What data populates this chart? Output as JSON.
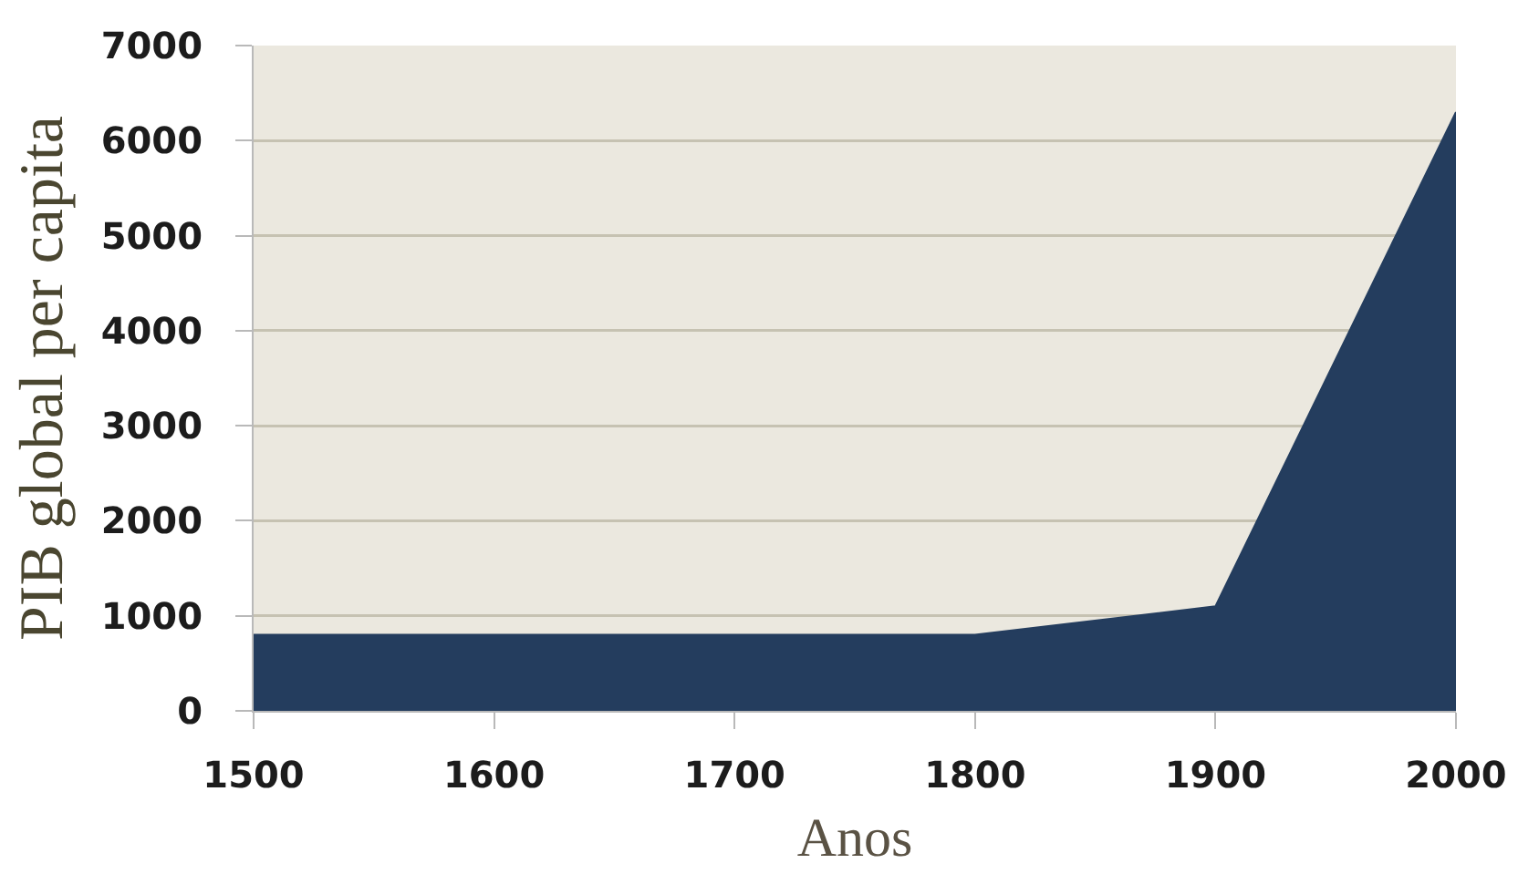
{
  "chart_data": {
    "type": "area",
    "xlabel": "Anos",
    "ylabel": "PIB global per capita",
    "x": [
      1500,
      1600,
      1700,
      1800,
      1900,
      2000
    ],
    "values": [
      800,
      800,
      800,
      800,
      1100,
      6300
    ],
    "color": "#243d5e",
    "xlim": [
      1500,
      2000
    ],
    "xticks": [
      1500,
      1600,
      1700,
      1800,
      1900,
      2000
    ],
    "ylim": [
      0,
      7000
    ],
    "yticks": [
      0,
      1000,
      2000,
      3000,
      4000,
      5000,
      6000,
      7000
    ],
    "grid": "y"
  }
}
